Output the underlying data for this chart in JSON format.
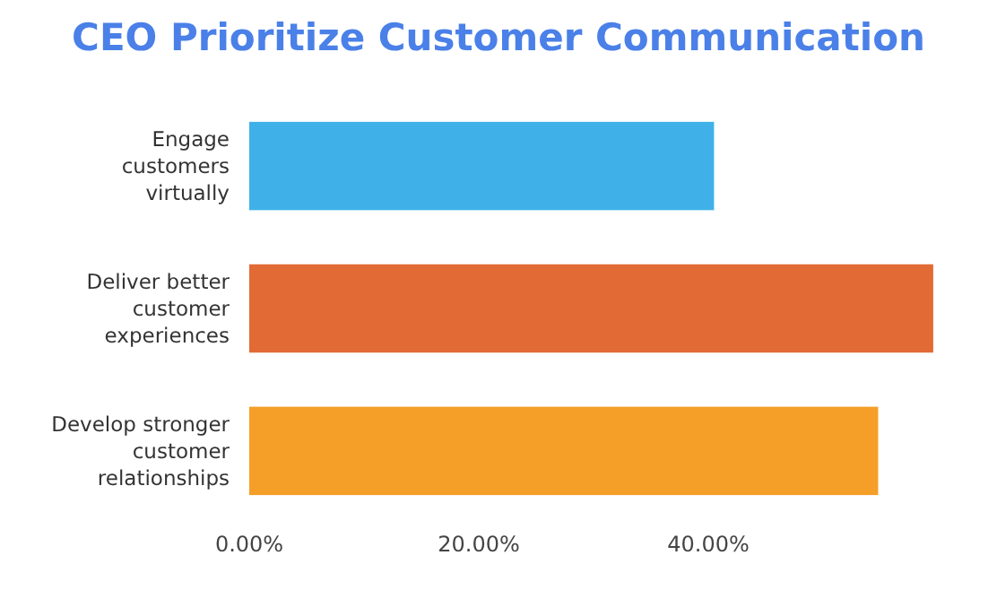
{
  "chart_data": {
    "type": "bar",
    "orientation": "horizontal",
    "title": "CEO Prioritize Customer Communication",
    "categories": [
      "Engage customers virtually",
      "Deliver better customer experiences",
      "Develop stronger customer relationships"
    ],
    "values": [
      40.5,
      59.6,
      54.8
    ],
    "colors": [
      "#3fb1e8",
      "#e26a35",
      "#f59e28"
    ],
    "xlim": [
      0,
      60
    ],
    "xticks": [
      {
        "value": 0,
        "label": "0.00%"
      },
      {
        "value": 20,
        "label": "20.00%"
      },
      {
        "value": 40,
        "label": "40.00%"
      }
    ],
    "grid": false
  }
}
